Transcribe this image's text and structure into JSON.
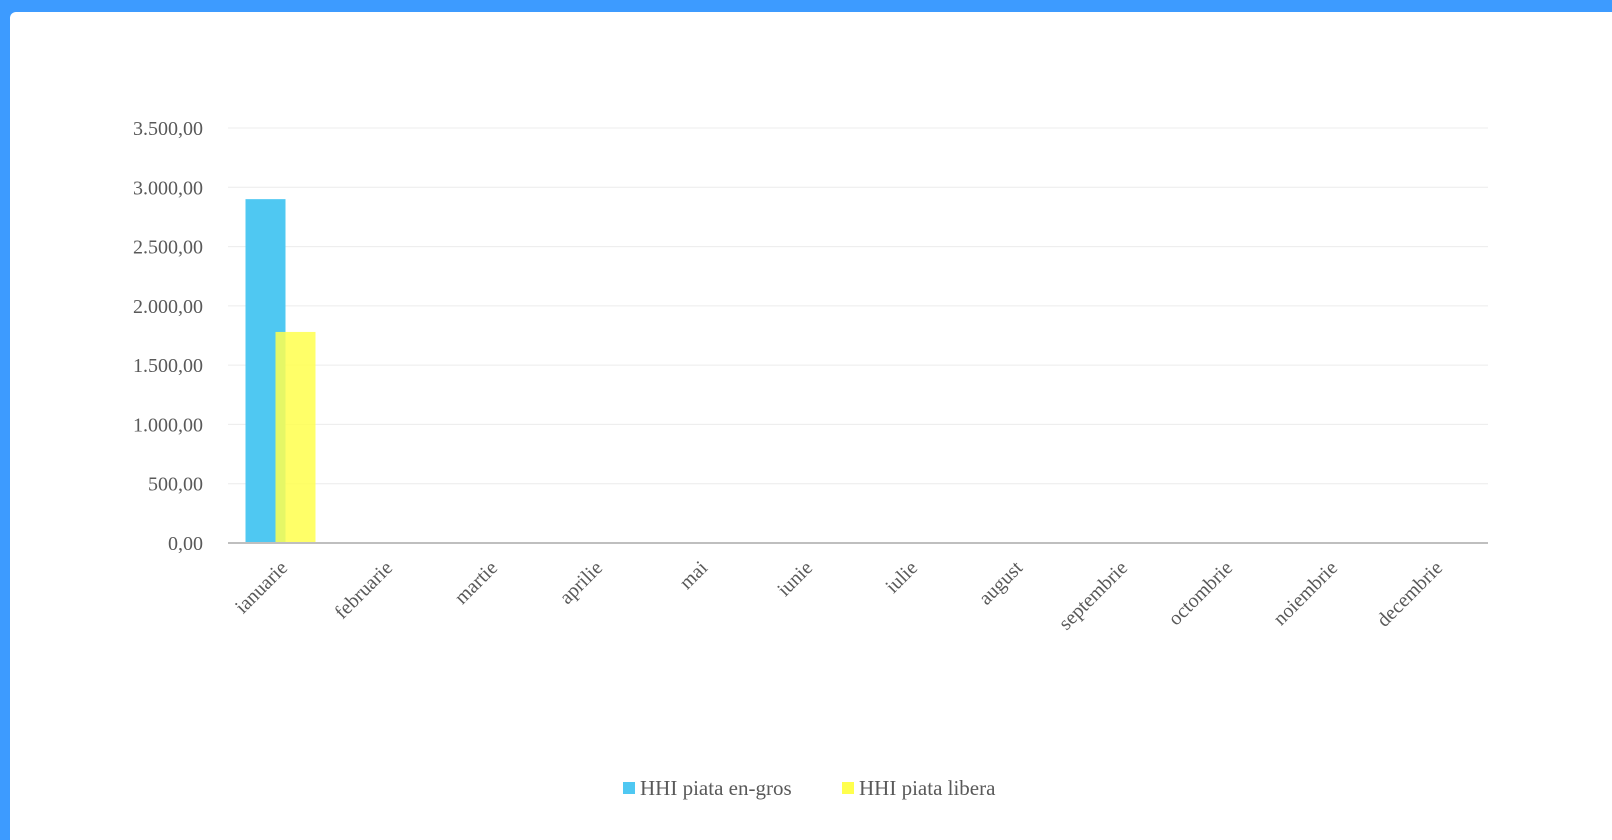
{
  "chart_data": {
    "type": "bar",
    "categories": [
      "ianuarie",
      "februarie",
      "martie",
      "aprilie",
      "mai",
      "iunie",
      "iulie",
      "august",
      "septembrie",
      "octombrie",
      "noiembrie",
      "decembrie"
    ],
    "series": [
      {
        "name": "HHI piata en-gros",
        "values": [
          2900,
          null,
          null,
          null,
          null,
          null,
          null,
          null,
          null,
          null,
          null,
          null
        ],
        "color": "#4fc8f2"
      },
      {
        "name": "HHI piata libera",
        "values": [
          1780,
          null,
          null,
          null,
          null,
          null,
          null,
          null,
          null,
          null,
          null,
          null
        ],
        "color": "#ffff4d"
      }
    ],
    "y_ticks": [
      "0,00",
      "500,00",
      "1.000,00",
      "1.500,00",
      "2.000,00",
      "2.500,00",
      "3.000,00",
      "3.500,00"
    ],
    "ylim": [
      0,
      3500
    ],
    "grid": true,
    "legend_position": "bottom"
  }
}
